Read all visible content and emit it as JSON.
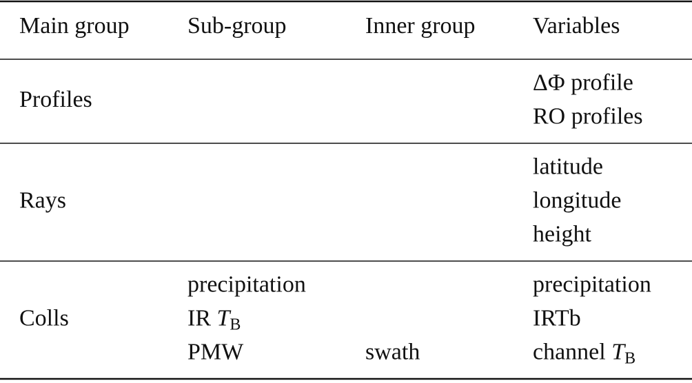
{
  "table": {
    "header": [
      "Main group",
      "Sub-group",
      "Inner group",
      "Variables"
    ],
    "rows": [
      [
        [
          "Profiles"
        ],
        [],
        [],
        [
          "ΔΦ profile",
          "RO profiles"
        ]
      ],
      [
        [
          "Rays"
        ],
        [],
        [],
        [
          "latitude",
          "longitude",
          "height"
        ]
      ],
      [
        [
          "Colls"
        ],
        [
          "precipitation",
          [
            {
              "text": "IR "
            },
            {
              "text": "T",
              "style": "italic"
            },
            {
              "text": "B",
              "style": "sub"
            }
          ],
          "PMW"
        ],
        [
          null,
          null,
          "swath"
        ],
        [
          "precipitation",
          "IRTb",
          [
            {
              "text": "channel "
            },
            {
              "text": "T",
              "style": "italic"
            },
            {
              "text": "B",
              "style": "sub"
            }
          ]
        ]
      ]
    ]
  }
}
